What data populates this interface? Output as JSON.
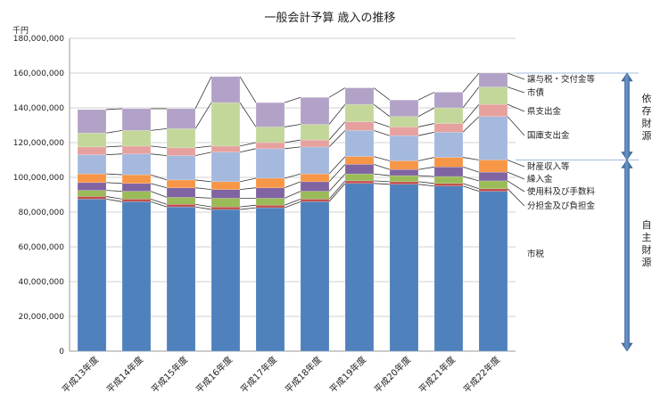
{
  "chart_data": {
    "type": "bar",
    "stacked": true,
    "title": "一般会計予算 歳入の推移",
    "unit_label": "千円",
    "ylim": [
      0,
      180000000
    ],
    "yticks": [
      0,
      20000000,
      40000000,
      60000000,
      80000000,
      100000000,
      120000000,
      140000000,
      160000000,
      180000000
    ],
    "ytick_labels": [
      "0",
      "20,000,000",
      "40,000,000",
      "60,000,000",
      "80,000,000",
      "100,000,000",
      "120,000,000",
      "140,000,000",
      "160,000,000",
      "180,000,000"
    ],
    "grid": true,
    "connector_lines": true,
    "categories": [
      "平成13年度",
      "平成14年度",
      "平成15年度",
      "平成16年度",
      "平成17年度",
      "平成18年度",
      "平成19年度",
      "平成20年度",
      "平成21年度",
      "平成22年度"
    ],
    "series": [
      {
        "name": "市税",
        "color": "#4f81bd",
        "values": [
          87500000,
          86000000,
          83000000,
          81500000,
          82500000,
          86000000,
          96500000,
          96000000,
          95000000,
          92000000
        ]
      },
      {
        "name": "分担金及び負担金",
        "color": "#c0504d",
        "values": [
          1500000,
          1500000,
          1500000,
          1500000,
          1500000,
          1500000,
          1500000,
          1500000,
          1500000,
          1500000
        ]
      },
      {
        "name": "使用料及び手数料",
        "color": "#9bbb59",
        "values": [
          3500000,
          4500000,
          4000000,
          5000000,
          4000000,
          4500000,
          4000000,
          3500000,
          4000000,
          4500000
        ]
      },
      {
        "name": "繰入金",
        "color": "#8064a2",
        "values": [
          4500000,
          4500000,
          5500000,
          5000000,
          6000000,
          5500000,
          5500000,
          3500000,
          5500000,
          5000000
        ]
      },
      {
        "name": "財産収入等",
        "color": "#f79646",
        "values": [
          5000000,
          5000000,
          4500000,
          4500000,
          5500000,
          4500000,
          4500000,
          5000000,
          5500000,
          7000000
        ]
      },
      {
        "name": "国庫支出金",
        "color": "#a5b9de",
        "values": [
          11000000,
          12000000,
          14000000,
          17000000,
          17000000,
          15500000,
          15000000,
          14500000,
          14500000,
          25000000
        ]
      },
      {
        "name": "県支出金",
        "color": "#e6a19f",
        "values": [
          4500000,
          4500000,
          4500000,
          3500000,
          3500000,
          4000000,
          5000000,
          5000000,
          5000000,
          7000000
        ]
      },
      {
        "name": "市債",
        "color": "#c4d79b",
        "values": [
          8000000,
          9000000,
          11000000,
          25000000,
          9000000,
          9000000,
          10000000,
          6000000,
          9000000,
          10000000
        ]
      },
      {
        "name": "譲与税・交付金等",
        "color": "#b3a2c7",
        "values": [
          13500000,
          12500000,
          11500000,
          15000000,
          14000000,
          15500000,
          9500000,
          9500000,
          9000000,
          8000000
        ]
      }
    ],
    "groups": [
      {
        "name": "依存財源",
        "from": 110000000,
        "to": 160000000
      },
      {
        "name": "自主財源",
        "from": 0,
        "to": 110000000
      }
    ],
    "legend_placement": "right"
  }
}
